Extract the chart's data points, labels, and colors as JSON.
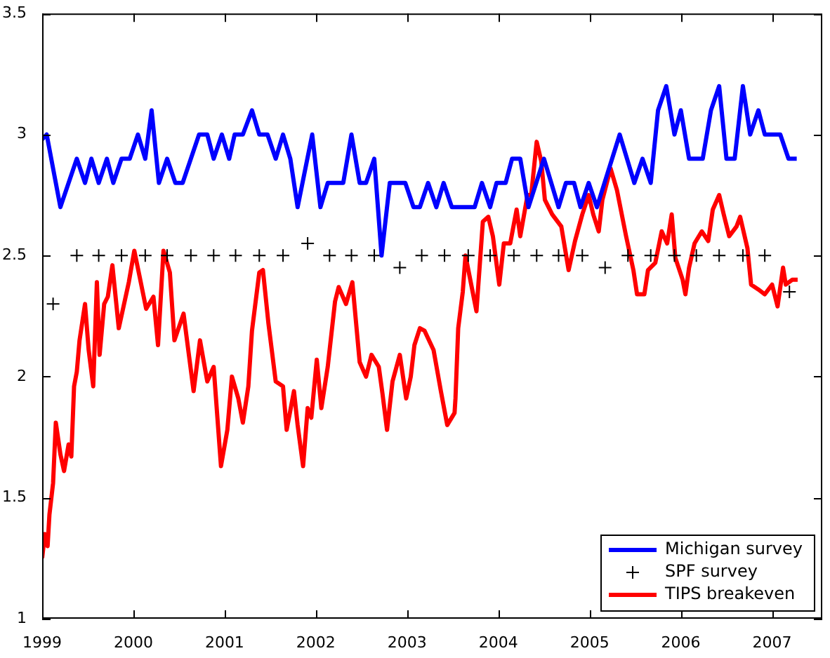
{
  "chart_data": {
    "type": "line",
    "xlim": [
      1999,
      2007.55
    ],
    "ylim": [
      1,
      3.5
    ],
    "xticks": [
      1999,
      2000,
      2001,
      2002,
      2003,
      2004,
      2005,
      2006,
      2007
    ],
    "yticks": [
      1,
      1.5,
      2,
      2.5,
      3,
      3.5
    ],
    "grid": false,
    "legend": "bottom right",
    "series": [
      {
        "name": "Michigan survey",
        "type": "line",
        "color": "#0000ff",
        "x": [
          1999.0,
          1999.05,
          1999.2,
          1999.38,
          1999.47,
          1999.54,
          1999.62,
          1999.71,
          1999.78,
          1999.87,
          1999.96,
          2000.05,
          2000.13,
          2000.2,
          2000.28,
          2000.37,
          2000.46,
          2000.54,
          2000.72,
          2000.81,
          2000.88,
          2000.97,
          2001.05,
          2001.11,
          2001.2,
          2001.3,
          2001.38,
          2001.47,
          2001.56,
          2001.64,
          2001.72,
          2001.8,
          2001.96,
          2002.05,
          2002.13,
          2002.3,
          2002.39,
          2002.48,
          2002.55,
          2002.64,
          2002.72,
          2002.81,
          2002.98,
          2003.07,
          2003.14,
          2003.23,
          2003.32,
          2003.4,
          2003.49,
          2003.74,
          2003.82,
          2003.91,
          2003.98,
          2004.08,
          2004.15,
          2004.24,
          2004.33,
          2004.5,
          2004.66,
          2004.74,
          2004.83,
          2004.9,
          2004.99,
          2005.08,
          2005.33,
          2005.49,
          2005.58,
          2005.67,
          2005.75,
          2005.84,
          2005.93,
          2006.0,
          2006.09,
          2006.24,
          2006.33,
          2006.42,
          2006.5,
          2006.59,
          2006.68,
          2006.76,
          2006.85,
          2006.92,
          2007.09,
          2007.18,
          2007.27
        ],
        "values": [
          2.98,
          3.0,
          2.7,
          2.9,
          2.8,
          2.9,
          2.8,
          2.9,
          2.8,
          2.9,
          2.9,
          3.0,
          2.9,
          3.1,
          2.8,
          2.9,
          2.8,
          2.8,
          3.0,
          3.0,
          2.9,
          3.0,
          2.9,
          3.0,
          3.0,
          3.1,
          3.0,
          3.0,
          2.9,
          3.0,
          2.9,
          2.7,
          3.0,
          2.7,
          2.8,
          2.8,
          3.0,
          2.8,
          2.8,
          2.9,
          2.5,
          2.8,
          2.8,
          2.7,
          2.7,
          2.8,
          2.7,
          2.8,
          2.7,
          2.7,
          2.8,
          2.7,
          2.8,
          2.8,
          2.9,
          2.9,
          2.7,
          2.9,
          2.7,
          2.8,
          2.8,
          2.7,
          2.8,
          2.7,
          3.0,
          2.8,
          2.9,
          2.8,
          3.1,
          3.2,
          3.0,
          3.1,
          2.9,
          2.9,
          3.1,
          3.2,
          2.9,
          2.9,
          3.2,
          3.0,
          3.1,
          3.0,
          3.0,
          2.9,
          2.9
        ]
      },
      {
        "name": "SPF survey",
        "type": "scatter",
        "color": "#000000",
        "marker": "cross",
        "x": [
          1999.12,
          1999.38,
          1999.62,
          1999.87,
          2000.13,
          2000.37,
          2000.63,
          2000.88,
          2001.12,
          2001.38,
          2001.64,
          2001.91,
          2002.15,
          2002.39,
          2002.64,
          2002.92,
          2003.16,
          2003.41,
          2003.67,
          2003.91,
          2004.17,
          2004.42,
          2004.66,
          2004.92,
          2005.17,
          2005.42,
          2005.67,
          2005.93,
          2006.17,
          2006.42,
          2006.68,
          2006.92,
          2007.19
        ],
        "values": [
          2.3,
          2.5,
          2.5,
          2.5,
          2.5,
          2.5,
          2.5,
          2.5,
          2.5,
          2.5,
          2.5,
          2.55,
          2.5,
          2.5,
          2.5,
          2.45,
          2.5,
          2.5,
          2.5,
          2.5,
          2.5,
          2.5,
          2.5,
          2.5,
          2.45,
          2.5,
          2.5,
          2.5,
          2.5,
          2.5,
          2.5,
          2.5,
          2.35
        ]
      },
      {
        "name": "TIPS breakeven",
        "type": "line",
        "color": "#ff0000",
        "x": [
          1999.0,
          1999.03,
          1999.06,
          1999.08,
          1999.12,
          1999.15,
          1999.2,
          1999.24,
          1999.29,
          1999.32,
          1999.35,
          1999.38,
          1999.41,
          1999.47,
          1999.51,
          1999.56,
          1999.6,
          1999.63,
          1999.68,
          1999.72,
          1999.77,
          1999.84,
          1999.95,
          2000.01,
          2000.07,
          2000.14,
          2000.22,
          2000.27,
          2000.33,
          2000.4,
          2000.45,
          2000.55,
          2000.66,
          2000.73,
          2000.81,
          2000.88,
          2000.96,
          2001.03,
          2001.08,
          2001.15,
          2001.2,
          2001.26,
          2001.3,
          2001.38,
          2001.42,
          2001.48,
          2001.56,
          2001.64,
          2001.68,
          2001.76,
          2001.8,
          2001.86,
          2001.91,
          2001.95,
          2002.01,
          2002.06,
          2002.13,
          2002.21,
          2002.25,
          2002.33,
          2002.4,
          2002.48,
          2002.55,
          2002.61,
          2002.69,
          2002.73,
          2002.78,
          2002.84,
          2002.92,
          2002.99,
          2003.04,
          2003.08,
          2003.14,
          2003.19,
          2003.29,
          2003.37,
          2003.44,
          2003.52,
          2003.53,
          2003.56,
          2003.61,
          2003.64,
          2003.76,
          2003.83,
          2003.89,
          2003.94,
          2004.01,
          2004.06,
          2004.13,
          2004.2,
          2004.24,
          2004.32,
          2004.36,
          2004.42,
          2004.47,
          2004.51,
          2004.59,
          2004.69,
          2004.77,
          2004.84,
          2004.92,
          2004.99,
          2005.04,
          2005.1,
          2005.14,
          2005.23,
          2005.3,
          2005.4,
          2005.48,
          2005.52,
          2005.6,
          2005.64,
          2005.72,
          2005.79,
          2005.85,
          2005.9,
          2005.94,
          2006.02,
          2006.05,
          2006.09,
          2006.15,
          2006.23,
          2006.3,
          2006.35,
          2006.42,
          2006.47,
          2006.53,
          2006.61,
          2006.65,
          2006.73,
          2006.77,
          2006.85,
          2006.92,
          2007.0,
          2007.06,
          2007.12,
          2007.15,
          2007.22,
          2007.28
        ],
        "values": [
          1.25,
          1.35,
          1.3,
          1.43,
          1.56,
          1.81,
          1.68,
          1.61,
          1.72,
          1.67,
          1.96,
          2.02,
          2.15,
          2.3,
          2.11,
          1.96,
          2.39,
          2.09,
          2.3,
          2.33,
          2.46,
          2.2,
          2.39,
          2.52,
          2.41,
          2.28,
          2.33,
          2.13,
          2.52,
          2.43,
          2.15,
          2.26,
          1.94,
          2.15,
          1.98,
          2.04,
          1.63,
          1.78,
          2.0,
          1.91,
          1.81,
          1.96,
          2.19,
          2.43,
          2.44,
          2.22,
          1.98,
          1.96,
          1.78,
          1.94,
          1.8,
          1.63,
          1.87,
          1.83,
          2.07,
          1.87,
          2.04,
          2.31,
          2.37,
          2.3,
          2.39,
          2.06,
          2.0,
          2.09,
          2.04,
          1.93,
          1.78,
          1.98,
          2.09,
          1.91,
          2.0,
          2.13,
          2.2,
          2.19,
          2.11,
          1.94,
          1.8,
          1.85,
          1.91,
          2.2,
          2.35,
          2.5,
          2.27,
          2.64,
          2.66,
          2.58,
          2.38,
          2.55,
          2.55,
          2.69,
          2.58,
          2.75,
          2.75,
          2.97,
          2.89,
          2.73,
          2.67,
          2.62,
          2.44,
          2.56,
          2.67,
          2.75,
          2.67,
          2.6,
          2.73,
          2.86,
          2.77,
          2.58,
          2.44,
          2.34,
          2.34,
          2.44,
          2.47,
          2.6,
          2.55,
          2.67,
          2.49,
          2.4,
          2.34,
          2.45,
          2.55,
          2.6,
          2.56,
          2.69,
          2.75,
          2.67,
          2.58,
          2.62,
          2.66,
          2.53,
          2.38,
          2.36,
          2.34,
          2.38,
          2.29,
          2.45,
          2.38,
          2.4,
          2.4
        ]
      }
    ]
  }
}
